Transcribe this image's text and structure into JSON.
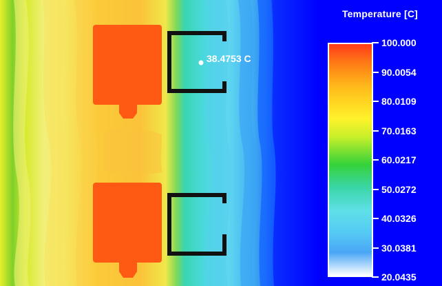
{
  "legend": {
    "title": "Temperature [C]",
    "min": 20.0435,
    "max": 100.0,
    "ticks": [
      "100.000",
      "90.0054",
      "80.0109",
      "70.0163",
      "60.0217",
      "50.0272",
      "40.0326",
      "30.0381",
      "20.0435"
    ]
  },
  "probe": {
    "label": "38.4753 C",
    "value": 38.4753
  },
  "colors": {
    "background": "#0000ff",
    "frame": "#111111",
    "heat_source": "#ff5a14"
  }
}
